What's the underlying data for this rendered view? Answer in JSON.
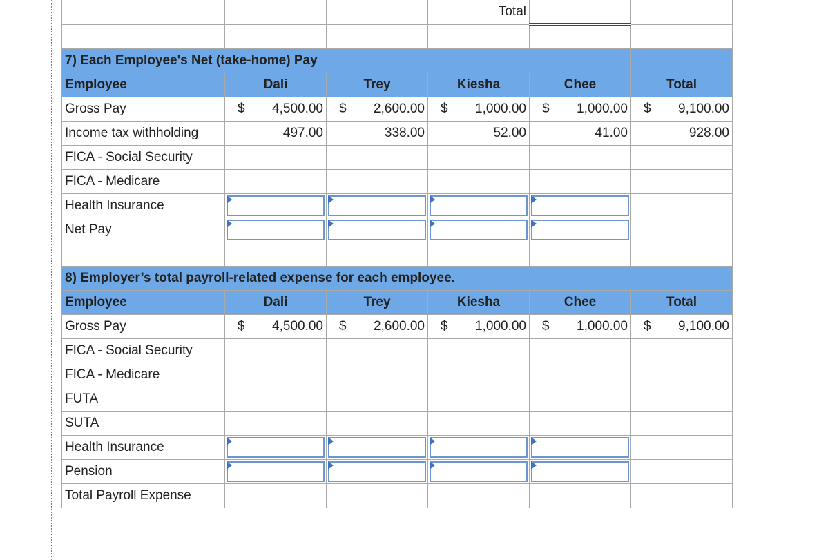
{
  "top": {
    "total_label": "Total"
  },
  "sec7": {
    "title": "7) Each Employee's Net (take-home) Pay",
    "header": [
      "Employee",
      "Dali",
      "Trey",
      "Kiesha",
      "Chee",
      "Total"
    ],
    "rows": [
      {
        "label": "Gross Pay",
        "dollar": "$",
        "values": [
          "4,500.00",
          "2,600.00",
          "1,000.00",
          "1,000.00",
          "9,100.00"
        ]
      },
      {
        "label": "Income tax withholding",
        "values": [
          "497.00",
          "338.00",
          "52.00",
          "41.00",
          "928.00"
        ]
      },
      {
        "label": "FICA - Social Security"
      },
      {
        "label": "FICA - Medicare"
      },
      {
        "label": "Health Insurance"
      },
      {
        "label": "Net Pay"
      }
    ]
  },
  "sec8": {
    "title": "8) Employer’s total payroll-related expense for each employee.",
    "header": [
      "Employee",
      "Dali",
      "Trey",
      "Kiesha",
      "Chee",
      "Total"
    ],
    "rows": [
      {
        "label": "Gross Pay",
        "dollar": "$",
        "values": [
          "4,500.00",
          "2,600.00",
          "1,000.00",
          "1,000.00",
          "9,100.00"
        ]
      },
      {
        "label": "FICA - Social Security"
      },
      {
        "label": "FICA - Medicare"
      },
      {
        "label": "FUTA"
      },
      {
        "label": "SUTA"
      },
      {
        "label": "Health Insurance"
      },
      {
        "label": "Pension"
      },
      {
        "label": "Total Payroll Expense"
      }
    ]
  },
  "colors": {
    "header_bg": "#6fa8e6",
    "input_border": "#6b96cf",
    "marker": "#3e73c3"
  },
  "icons": {
    "input_marker": "triangle-right-icon"
  }
}
